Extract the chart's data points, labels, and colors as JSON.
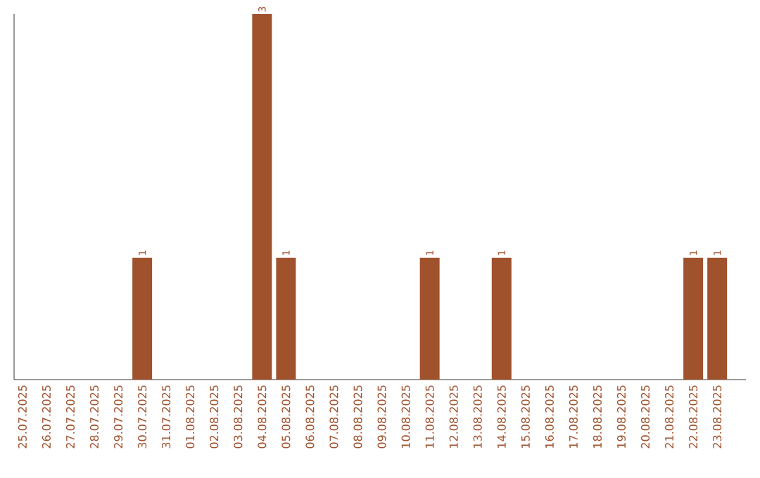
{
  "chart_data": {
    "type": "bar",
    "categories": [
      "25.07.2025",
      "26.07.2025",
      "27.07.2025",
      "28.07.2025",
      "29.07.2025",
      "30.07.2025",
      "31.07.2025",
      "01.08.2025",
      "02.08.2025",
      "03.08.2025",
      "04.08.2025",
      "05.08.2025",
      "06.08.2025",
      "07.08.2025",
      "08.08.2025",
      "09.08.2025",
      "10.08.2025",
      "11.08.2025",
      "12.08.2025",
      "13.08.2025",
      "14.08.2025",
      "15.08.2025",
      "16.08.2025",
      "17.08.2025",
      "18.08.2025",
      "19.08.2025",
      "20.08.2025",
      "21.08.2025",
      "22.08.2025",
      "23.08.2025"
    ],
    "values": [
      0,
      0,
      0,
      0,
      0,
      1,
      0,
      0,
      0,
      0,
      3,
      1,
      0,
      0,
      0,
      0,
      0,
      1,
      0,
      0,
      1,
      0,
      0,
      0,
      0,
      0,
      0,
      0,
      1,
      1
    ],
    "value_labels": [
      null,
      null,
      null,
      null,
      null,
      "1",
      null,
      null,
      null,
      null,
      "3",
      "1",
      null,
      null,
      null,
      null,
      null,
      "1",
      null,
      null,
      "1",
      null,
      null,
      null,
      null,
      null,
      null,
      null,
      "1",
      "1"
    ],
    "color": "#a0522d"
  }
}
